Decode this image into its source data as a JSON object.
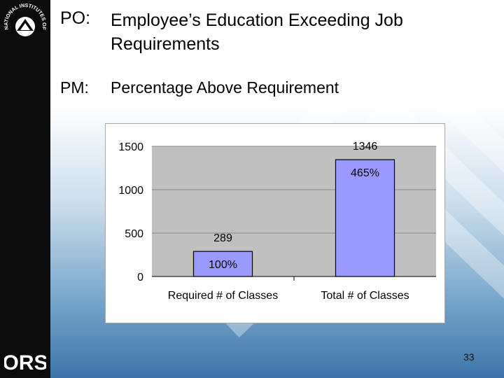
{
  "slide": {
    "po_label": "PO:",
    "po_title": "Employee’s Education Exceeding Job Requirements",
    "pm_label": "PM:",
    "pm_title": "Percentage Above Requirement",
    "page_number": "33"
  },
  "logos": {
    "nih_text": "NATIONAL INSTITUTES OF HEALTH",
    "ors_text": "ORS"
  },
  "colors": {
    "bar_fill": "#9999ff",
    "plot_bg": "#c0c0c0",
    "left_band": "#0b0b0b"
  },
  "chart_data": {
    "type": "bar",
    "categories": [
      "Required # of Classes",
      "Total # of Classes"
    ],
    "values": [
      289,
      1346
    ],
    "value_labels": [
      "289",
      "1346"
    ],
    "inside_labels": [
      "100%",
      "465%"
    ],
    "ylim": [
      0,
      1500
    ],
    "yticks": [
      0,
      500,
      1000,
      1500
    ],
    "ytick_labels": [
      "0",
      "500",
      "1000",
      "1500"
    ],
    "grid": true,
    "legend": "none"
  }
}
